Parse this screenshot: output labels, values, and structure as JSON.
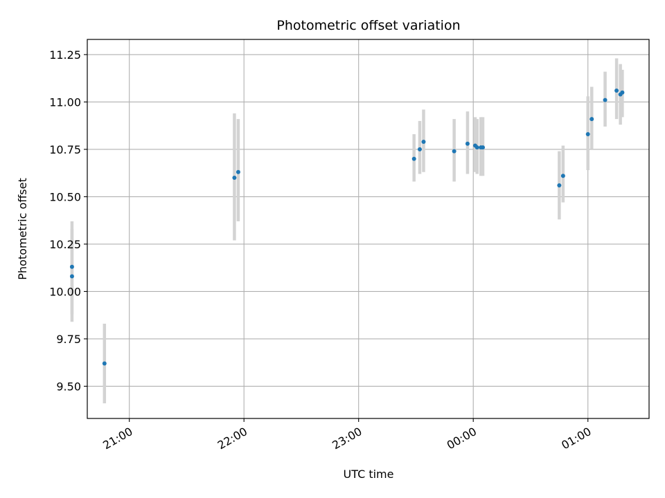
{
  "chart_data": {
    "type": "scatter",
    "title": "Photometric offset variation",
    "xlabel": "UTC time",
    "ylabel": "Photometric offset",
    "x_unit": "UTC time (hours, continuing past midnight)",
    "xlim": [
      "20:38",
      "01:32"
    ],
    "ylim": [
      9.33,
      11.33
    ],
    "x_ticks": [
      "21:00",
      "22:00",
      "23:00",
      "00:00",
      "01:00"
    ],
    "y_ticks": [
      "9.50",
      "9.75",
      "10.00",
      "10.25",
      "10.50",
      "10.75",
      "11.00",
      "11.25"
    ],
    "grid": true,
    "point_color": "#1f77b4",
    "error_color": "#d3d3d3",
    "points": [
      {
        "x": "20:30",
        "y": 10.13,
        "ylo": 9.88,
        "yhi": 10.37
      },
      {
        "x": "20:30",
        "y": 10.08,
        "ylo": 9.84,
        "yhi": 10.33
      },
      {
        "x": "20:47",
        "y": 9.62,
        "ylo": 9.41,
        "yhi": 9.83
      },
      {
        "x": "21:55",
        "y": 10.6,
        "ylo": 10.27,
        "yhi": 10.94
      },
      {
        "x": "21:57",
        "y": 10.63,
        "ylo": 10.37,
        "yhi": 10.91
      },
      {
        "x": "23:29",
        "y": 10.7,
        "ylo": 10.58,
        "yhi": 10.83
      },
      {
        "x": "23:32",
        "y": 10.75,
        "ylo": 10.62,
        "yhi": 10.9
      },
      {
        "x": "23:34",
        "y": 10.79,
        "ylo": 10.63,
        "yhi": 10.96
      },
      {
        "x": "23:50",
        "y": 10.74,
        "ylo": 10.58,
        "yhi": 10.91
      },
      {
        "x": "23:57",
        "y": 10.78,
        "ylo": 10.62,
        "yhi": 10.95
      },
      {
        "x": "00:01",
        "y": 10.77,
        "ylo": 10.63,
        "yhi": 10.92
      },
      {
        "x": "00:02",
        "y": 10.76,
        "ylo": 10.62,
        "yhi": 10.91
      },
      {
        "x": "00:04",
        "y": 10.76,
        "ylo": 10.61,
        "yhi": 10.92
      },
      {
        "x": "00:05",
        "y": 10.76,
        "ylo": 10.61,
        "yhi": 10.92
      },
      {
        "x": "00:45",
        "y": 10.56,
        "ylo": 10.38,
        "yhi": 10.74
      },
      {
        "x": "00:47",
        "y": 10.61,
        "ylo": 10.47,
        "yhi": 10.77
      },
      {
        "x": "01:00",
        "y": 10.83,
        "ylo": 10.64,
        "yhi": 11.03
      },
      {
        "x": "01:02",
        "y": 10.91,
        "ylo": 10.75,
        "yhi": 11.08
      },
      {
        "x": "01:09",
        "y": 11.01,
        "ylo": 10.87,
        "yhi": 11.16
      },
      {
        "x": "01:15",
        "y": 11.06,
        "ylo": 10.91,
        "yhi": 11.23
      },
      {
        "x": "01:17",
        "y": 11.04,
        "ylo": 10.88,
        "yhi": 11.2
      },
      {
        "x": "01:18",
        "y": 11.05,
        "ylo": 10.92,
        "yhi": 11.17
      }
    ]
  }
}
